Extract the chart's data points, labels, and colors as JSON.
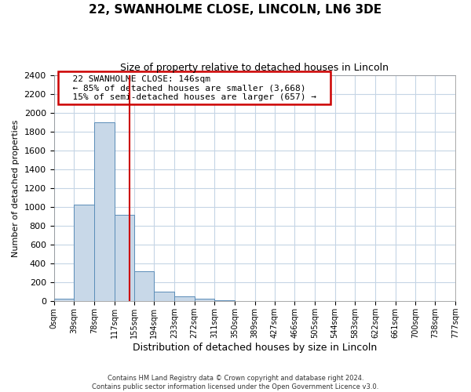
{
  "title": "22, SWANHOLME CLOSE, LINCOLN, LN6 3DE",
  "subtitle": "Size of property relative to detached houses in Lincoln",
  "xlabel": "Distribution of detached houses by size in Lincoln",
  "ylabel": "Number of detached properties",
  "footnote1": "Contains HM Land Registry data © Crown copyright and database right 2024.",
  "footnote2": "Contains public sector information licensed under the Open Government Licence v3.0.",
  "property_label": "22 SWANHOLME CLOSE: 146sqm",
  "annotation_line1": "← 85% of detached houses are smaller (3,668)",
  "annotation_line2": "15% of semi-detached houses are larger (657) →",
  "bar_edges": [
    0,
    39,
    78,
    117,
    155,
    194,
    233,
    272,
    311,
    350,
    389,
    427,
    466,
    505,
    544,
    583,
    622,
    661,
    700,
    738,
    777
  ],
  "bar_heights": [
    25,
    1025,
    1900,
    920,
    320,
    105,
    50,
    25,
    10,
    0,
    0,
    0,
    0,
    0,
    0,
    0,
    0,
    0,
    0,
    0
  ],
  "bar_color": "#c8d8e8",
  "bar_edge_color": "#5b8db8",
  "redline_x": 146,
  "ylim": [
    0,
    2400
  ],
  "yticks": [
    0,
    200,
    400,
    600,
    800,
    1000,
    1200,
    1400,
    1600,
    1800,
    2000,
    2200,
    2400
  ],
  "xtick_labels": [
    "0sqm",
    "39sqm",
    "78sqm",
    "117sqm",
    "155sqm",
    "194sqm",
    "233sqm",
    "272sqm",
    "311sqm",
    "350sqm",
    "389sqm",
    "427sqm",
    "466sqm",
    "505sqm",
    "544sqm",
    "583sqm",
    "622sqm",
    "661sqm",
    "700sqm",
    "738sqm",
    "777sqm"
  ],
  "box_color": "#cc0000",
  "grid_color": "#c5d5e5",
  "background_color": "#ffffff",
  "title_fontsize": 11,
  "subtitle_fontsize": 9,
  "ylabel_fontsize": 8,
  "xlabel_fontsize": 9
}
